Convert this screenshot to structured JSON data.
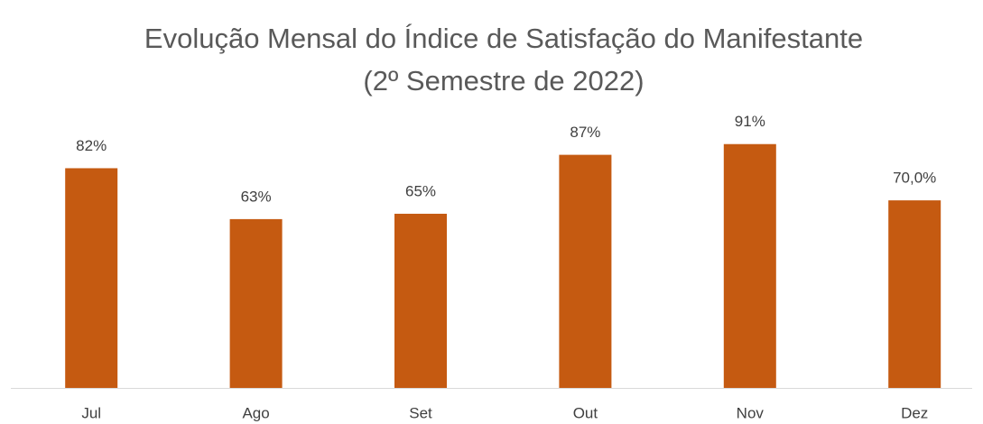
{
  "chart_data": {
    "type": "bar",
    "title": "Evolução Mensal do Índice de Satisfação do Manifestante",
    "subtitle": "(2º Semestre de 2022)",
    "categories": [
      "Jul",
      "Ago",
      "Set",
      "Out",
      "Nov",
      "Dez"
    ],
    "values": [
      82,
      63,
      65,
      87,
      91,
      70
    ],
    "value_labels": [
      "82%",
      "63%",
      "65%",
      "87%",
      "91%",
      "70,0%"
    ],
    "color": "#c55a11",
    "ylim": [
      0,
      100
    ]
  }
}
